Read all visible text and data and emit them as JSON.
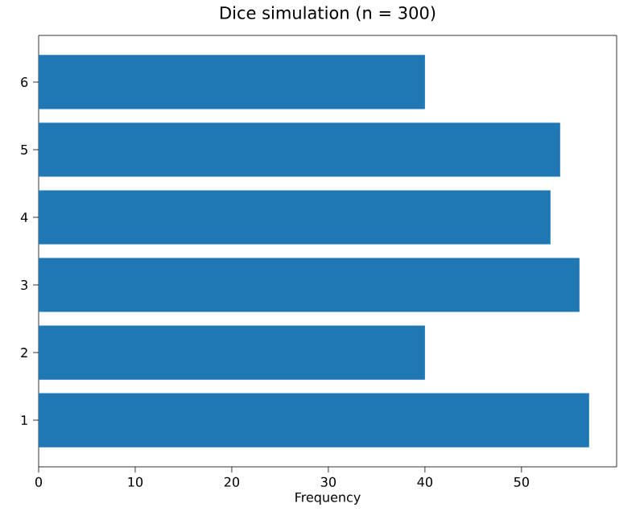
{
  "chart_data": {
    "type": "bar",
    "orientation": "horizontal",
    "title": "Dice simulation (n = 300)",
    "xlabel": "Frequency",
    "categories": [
      "6",
      "5",
      "4",
      "3",
      "2",
      "1"
    ],
    "values": [
      40,
      54,
      53,
      56,
      40,
      57
    ],
    "color": "#1f77b4",
    "xlim": [
      0,
      59.85
    ],
    "xticks": [
      0,
      10,
      20,
      30,
      40,
      50
    ],
    "grid": false
  }
}
